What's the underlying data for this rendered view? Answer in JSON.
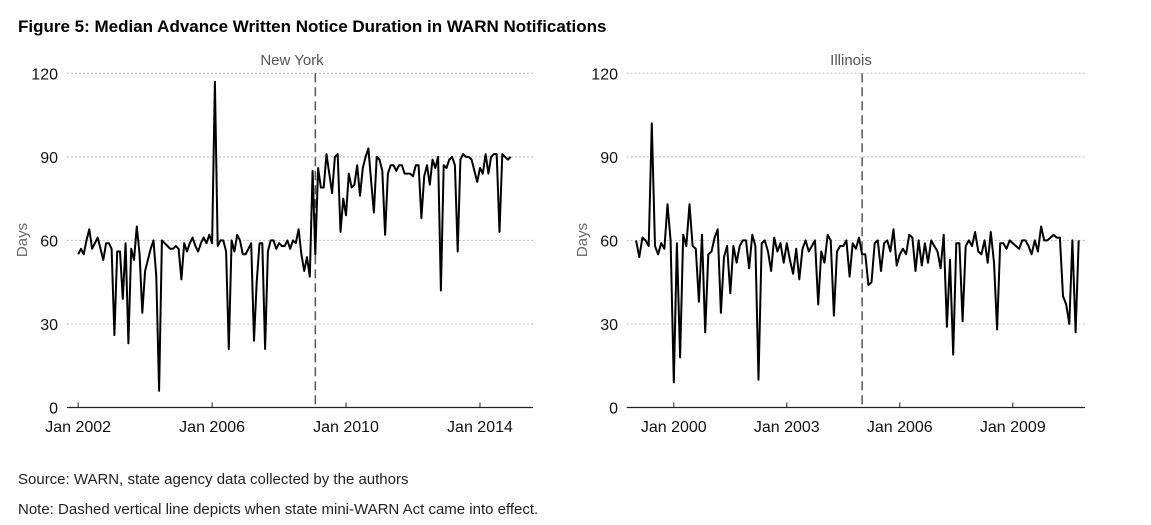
{
  "figure": {
    "title": "Figure 5: Median Advance Written Notice Duration in WARN Notifications",
    "source": "Source: WARN, state agency data collected by the authors",
    "note": "Note: Dashed vertical line depicts when state mini-WARN Act came into effect."
  },
  "chart_data": [
    {
      "type": "line",
      "title": "New York",
      "xlabel": "",
      "ylabel": "Days",
      "ylim": [
        0,
        120
      ],
      "yticks": [
        0,
        30,
        60,
        90,
        120
      ],
      "xlim": [
        "2001-09",
        "2015-08"
      ],
      "xticks": [
        {
          "date": "2002-01",
          "label": "Jan 2002"
        },
        {
          "date": "2006-01",
          "label": "Jan 2006"
        },
        {
          "date": "2010-01",
          "label": "Jan 2010"
        },
        {
          "date": "2014-01",
          "label": "Jan 2014"
        }
      ],
      "grid": "horizontal dotted",
      "event_line": {
        "date": "2009-02",
        "style": "dashed"
      },
      "series": [
        {
          "start": "2002-01",
          "frequency": "monthly",
          "color": "#000000",
          "values": [
            55,
            57,
            55,
            60,
            64,
            57,
            59,
            61,
            57,
            53,
            59,
            59,
            57,
            26,
            56,
            56,
            39,
            59,
            23,
            57,
            53,
            65,
            55,
            34,
            49,
            53,
            57,
            60,
            47,
            6,
            60,
            59,
            58,
            57,
            57,
            58,
            57,
            46,
            59,
            56,
            59,
            61,
            58,
            56,
            59,
            61,
            59,
            62,
            59,
            117,
            58,
            60,
            60,
            56,
            21,
            60,
            56,
            62,
            60,
            55,
            55,
            57,
            59,
            24,
            45,
            59,
            59,
            21,
            56,
            60,
            60,
            57,
            59,
            58,
            58,
            60,
            57,
            60,
            59,
            64,
            55,
            49,
            54,
            47,
            85,
            55,
            86,
            79,
            79,
            91,
            84,
            77,
            90,
            91,
            63,
            75,
            69,
            84,
            79,
            80,
            87,
            76,
            86,
            90,
            93,
            81,
            70,
            90,
            89,
            85,
            62,
            84,
            87,
            87,
            85,
            87,
            87,
            84,
            84,
            84,
            83,
            87,
            87,
            68,
            83,
            87,
            80,
            89,
            86,
            90,
            42,
            87,
            86,
            89,
            90,
            87,
            56,
            89,
            91,
            90,
            90,
            89,
            85,
            81,
            86,
            84,
            91,
            84,
            90,
            91,
            91,
            63,
            91,
            90,
            89,
            90
          ]
        }
      ]
    },
    {
      "type": "line",
      "title": "Illinois",
      "xlabel": "",
      "ylabel": "Days",
      "ylim": [
        0,
        120
      ],
      "yticks": [
        0,
        30,
        60,
        90,
        120
      ],
      "xlim": [
        "1998-10",
        "2010-12"
      ],
      "xticks": [
        {
          "date": "2000-01",
          "label": "Jan 2000"
        },
        {
          "date": "2003-01",
          "label": "Jan 2003"
        },
        {
          "date": "2006-01",
          "label": "Jan 2006"
        },
        {
          "date": "2009-01",
          "label": "Jan 2009"
        }
      ],
      "grid": "horizontal dotted",
      "event_line": {
        "date": "2005-01",
        "style": "dashed"
      },
      "series": [
        {
          "start": "1999-01",
          "frequency": "monthly",
          "color": "#000000",
          "values": [
            60,
            54,
            61,
            60,
            58,
            102,
            58,
            55,
            59,
            57,
            73,
            60,
            9,
            59,
            18,
            62,
            58,
            73,
            58,
            57,
            38,
            62,
            27,
            55,
            56,
            61,
            64,
            34,
            54,
            58,
            41,
            58,
            52,
            58,
            60,
            60,
            50,
            62,
            58,
            10,
            59,
            60,
            56,
            49,
            61,
            56,
            59,
            52,
            59,
            53,
            48,
            57,
            46,
            57,
            60,
            56,
            58,
            60,
            37,
            56,
            52,
            62,
            60,
            33,
            56,
            58,
            58,
            60,
            47,
            59,
            57,
            61,
            55,
            55,
            44,
            45,
            59,
            60,
            49,
            59,
            60,
            56,
            64,
            51,
            55,
            57,
            55,
            62,
            61,
            49,
            60,
            51,
            59,
            52,
            60,
            58,
            56,
            50,
            62,
            29,
            53,
            19,
            59,
            59,
            31,
            58,
            60,
            58,
            63,
            56,
            55,
            60,
            52,
            63,
            52,
            28,
            59,
            59,
            57,
            60,
            59,
            58,
            57,
            60,
            60,
            58,
            55,
            60,
            56,
            65,
            60,
            60,
            61,
            62,
            61,
            61,
            40,
            37,
            30,
            60,
            27,
            60
          ]
        }
      ]
    }
  ]
}
